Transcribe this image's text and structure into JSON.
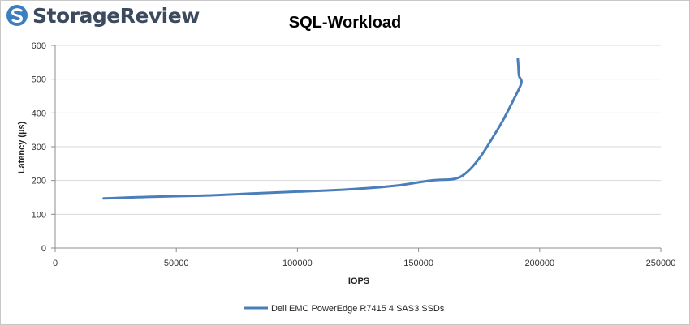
{
  "brand": {
    "name": "StorageReview",
    "accent": "#3c7fc1"
  },
  "chart_data": {
    "type": "line",
    "title": "SQL-Workload",
    "xlabel": "IOPS",
    "ylabel": "Latency (µs)",
    "xlim": [
      0,
      250000
    ],
    "ylim": [
      0,
      600
    ],
    "xticks": [
      0,
      50000,
      100000,
      150000,
      200000,
      250000
    ],
    "yticks": [
      0,
      100,
      200,
      300,
      400,
      500,
      600
    ],
    "grid": true,
    "legend": "bottom",
    "series": [
      {
        "name": "Dell EMC PowerEdge R7415 4 SAS3 SSDs",
        "color": "#4a7ebb",
        "points": [
          [
            20000,
            147
          ],
          [
            40000,
            152
          ],
          [
            60000,
            155
          ],
          [
            80000,
            161
          ],
          [
            100000,
            167
          ],
          [
            120000,
            173
          ],
          [
            140000,
            184
          ],
          [
            155000,
            200
          ],
          [
            165000,
            205
          ],
          [
            170000,
            225
          ],
          [
            175000,
            265
          ],
          [
            180000,
            320
          ],
          [
            185000,
            380
          ],
          [
            190000,
            450
          ],
          [
            192500,
            490
          ],
          [
            191500,
            510
          ],
          [
            191200,
            540
          ],
          [
            191000,
            560
          ]
        ]
      }
    ]
  }
}
